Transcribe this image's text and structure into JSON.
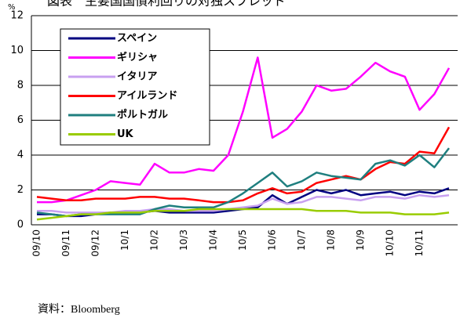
{
  "chart_data": {
    "type": "line",
    "title": "図表　主要国国債利回りの対独スプレッド",
    "y_label": "%",
    "source": "資料：Bloomberg",
    "categories": [
      "09/10",
      null,
      "09/11",
      null,
      "09/12",
      null,
      "10/1",
      null,
      "10/2",
      null,
      "10/3",
      null,
      "10/4",
      null,
      "10/5",
      null,
      "10/6",
      null,
      "10/7",
      null,
      "10/8",
      null,
      "10/9",
      null,
      "10/10",
      null,
      "10/11",
      null,
      null
    ],
    "ylim": [
      0,
      12
    ],
    "yticks": [
      0,
      2,
      4,
      6,
      8,
      10,
      12
    ],
    "grid": true,
    "legend": "upper left",
    "series": [
      {
        "name": "スペイン",
        "color": "#000080",
        "values": [
          0.6,
          0.6,
          0.5,
          0.5,
          0.6,
          0.7,
          0.7,
          0.7,
          0.8,
          0.7,
          0.7,
          0.7,
          0.7,
          0.8,
          0.9,
          1.0,
          1.7,
          1.2,
          1.6,
          2.0,
          1.8,
          2.0,
          1.7,
          1.8,
          1.9,
          1.7,
          1.9,
          1.8,
          2.1
        ]
      },
      {
        "name": "ギリシャ",
        "color": "#ff00ff",
        "values": [
          1.3,
          1.3,
          1.4,
          1.7,
          2.0,
          2.5,
          2.4,
          2.3,
          3.5,
          3.0,
          3.0,
          3.2,
          3.1,
          4.0,
          6.5,
          9.6,
          5.0,
          5.5,
          6.5,
          8.0,
          7.7,
          7.8,
          8.5,
          9.3,
          8.8,
          8.5,
          6.6,
          7.5,
          9.0
        ]
      },
      {
        "name": "イタリア",
        "color": "#c8a0f0",
        "values": [
          0.8,
          0.8,
          0.7,
          0.7,
          0.7,
          0.7,
          0.8,
          0.8,
          0.9,
          0.9,
          0.8,
          0.8,
          0.8,
          0.9,
          1.0,
          1.1,
          1.5,
          1.2,
          1.3,
          1.6,
          1.6,
          1.5,
          1.4,
          1.6,
          1.6,
          1.5,
          1.7,
          1.6,
          1.7
        ]
      },
      {
        "name": "アイルランド",
        "color": "#ff0000",
        "values": [
          1.6,
          1.5,
          1.4,
          1.4,
          1.5,
          1.5,
          1.5,
          1.6,
          1.6,
          1.5,
          1.5,
          1.4,
          1.3,
          1.3,
          1.4,
          1.8,
          2.1,
          1.8,
          1.9,
          2.4,
          2.6,
          2.8,
          2.6,
          3.2,
          3.6,
          3.5,
          4.2,
          4.1,
          5.6
        ]
      },
      {
        "name": "ポルトガル",
        "color": "#1f7f7f",
        "values": [
          0.7,
          0.6,
          0.5,
          0.6,
          0.6,
          0.6,
          0.6,
          0.6,
          0.9,
          1.1,
          1.0,
          1.0,
          1.0,
          1.3,
          1.8,
          2.4,
          3.0,
          2.2,
          2.5,
          3.0,
          2.8,
          2.7,
          2.6,
          3.5,
          3.7,
          3.4,
          4.0,
          3.3,
          4.4
        ]
      },
      {
        "name": "UK",
        "color": "#99cc00",
        "values": [
          0.3,
          0.4,
          0.5,
          0.6,
          0.6,
          0.7,
          0.7,
          0.7,
          0.8,
          0.8,
          0.8,
          0.9,
          0.9,
          0.9,
          0.9,
          0.9,
          0.9,
          0.9,
          0.9,
          0.8,
          0.8,
          0.8,
          0.7,
          0.7,
          0.7,
          0.6,
          0.6,
          0.6,
          0.7
        ]
      }
    ]
  }
}
